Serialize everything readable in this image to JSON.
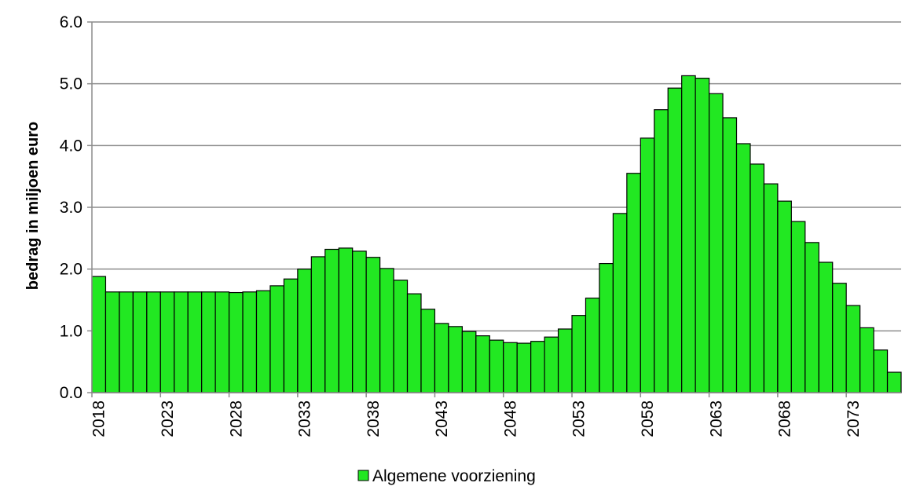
{
  "chart_data": {
    "type": "bar",
    "ylabel": "bedrag in miljoen euro",
    "categories": [
      "2018",
      null,
      null,
      null,
      null,
      "2023",
      null,
      null,
      null,
      null,
      "2028",
      null,
      null,
      null,
      null,
      "2033",
      null,
      null,
      null,
      null,
      "2038",
      null,
      null,
      null,
      null,
      "2043",
      null,
      null,
      null,
      null,
      "2048",
      null,
      null,
      null,
      null,
      "2053",
      null,
      null,
      null,
      null,
      "2058",
      null,
      null,
      null,
      null,
      "2063",
      null,
      null,
      null,
      null,
      "2068",
      null,
      null,
      null,
      null,
      "2073",
      null,
      null,
      null
    ],
    "series": [
      {
        "name": "Algemene voorziening",
        "color": "#22e822",
        "values": [
          1.88,
          1.63,
          1.63,
          1.63,
          1.63,
          1.63,
          1.63,
          1.63,
          1.63,
          1.63,
          1.62,
          1.63,
          1.65,
          1.73,
          1.84,
          2.0,
          2.2,
          2.32,
          2.34,
          2.29,
          2.19,
          2.01,
          1.82,
          1.6,
          1.35,
          1.12,
          1.07,
          0.99,
          0.92,
          0.85,
          0.81,
          0.8,
          0.83,
          0.9,
          1.03,
          1.25,
          1.53,
          2.09,
          2.9,
          3.55,
          4.12,
          4.58,
          4.93,
          5.13,
          5.09,
          4.84,
          4.45,
          4.03,
          3.7,
          3.38,
          3.1,
          2.77,
          2.43,
          2.11,
          1.77,
          1.41,
          1.05,
          0.69,
          0.33
        ]
      }
    ],
    "ylim": [
      0,
      6
    ],
    "yticks": [
      {
        "value": 0,
        "label": "0.0"
      },
      {
        "value": 1,
        "label": "1.0"
      },
      {
        "value": 2,
        "label": "2.0"
      },
      {
        "value": 3,
        "label": "3.0"
      },
      {
        "value": 4,
        "label": "4.0"
      },
      {
        "value": 5,
        "label": "5.0"
      },
      {
        "value": 6,
        "label": "6.0"
      }
    ],
    "grid": true,
    "legend": "bottom"
  }
}
